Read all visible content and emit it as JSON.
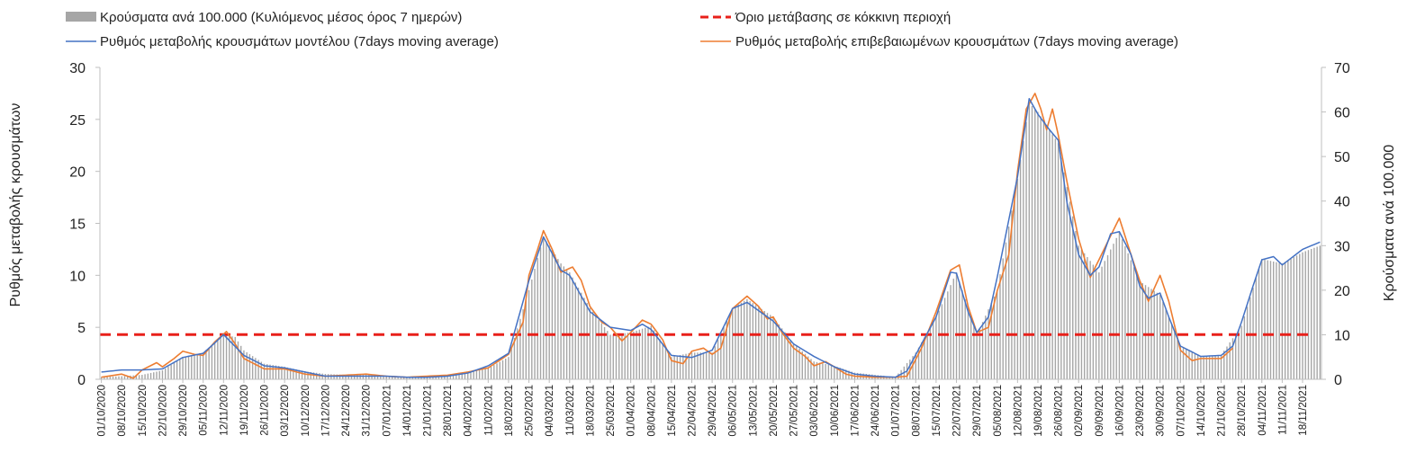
{
  "chart_data": {
    "type": "bar",
    "legend": {
      "bars": "Κρούσματα ανά 100.000 (Κυλιόμενος μέσος όρος 7 ημερών)",
      "threshold": "Όριο μετάβασης σε κόκκινη περιοχή",
      "model": "Ρυθμός μεταβολής κρουσμάτων μοντέλου (7days moving average)",
      "confirmed": "Ρυθμός μεταβολής επιβεβαιωμένων κρουσμάτων (7days moving average)"
    },
    "ylabel_left": "Ρυθμός μεταβολής κρουσμάτων",
    "ylabel_right": "Κρούσματα ανά 100.000",
    "ylim_left": [
      0,
      30
    ],
    "ylim_right": [
      0,
      70
    ],
    "yticks_left": [
      0,
      5,
      10,
      15,
      20,
      25,
      30
    ],
    "yticks_right": [
      0,
      10,
      20,
      30,
      40,
      50,
      60,
      70
    ],
    "x_start": "01/10/2020",
    "x_end": "24/11/2021",
    "x_tick_labels": [
      "01/10/2020",
      "08/10/2020",
      "15/10/2020",
      "22/10/2020",
      "29/10/2020",
      "05/11/2020",
      "12/11/2020",
      "19/11/2020",
      "26/11/2020",
      "03/12/2020",
      "10/12/2020",
      "17/12/2020",
      "24/12/2020",
      "31/12/2020",
      "07/01/2021",
      "14/01/2021",
      "21/01/2021",
      "28/01/2021",
      "04/02/2021",
      "11/02/2021",
      "18/02/2021",
      "25/02/2021",
      "04/03/2021",
      "11/03/2021",
      "18/03/2021",
      "25/03/2021",
      "01/04/2021",
      "08/04/2021",
      "15/04/2021",
      "22/04/2021",
      "29/04/2021",
      "06/05/2021",
      "13/05/2021",
      "20/05/2021",
      "27/05/2021",
      "03/06/2021",
      "10/06/2021",
      "17/06/2021",
      "24/06/2021",
      "01/07/2021",
      "08/07/2021",
      "15/07/2021",
      "22/07/2021",
      "29/07/2021",
      "05/08/2021",
      "12/08/2021",
      "19/08/2021",
      "26/08/2021",
      "02/09/2021",
      "09/09/2021",
      "16/09/2021",
      "23/09/2021",
      "30/09/2021",
      "07/10/2021",
      "14/10/2021",
      "21/10/2021",
      "28/10/2021",
      "04/11/2021",
      "11/11/2021",
      "18/11/2021"
    ],
    "threshold_value": 4.3,
    "model_rate_points": [
      [
        "01/10/2020",
        0.7
      ],
      [
        "08/10/2020",
        0.9
      ],
      [
        "15/10/2020",
        0.9
      ],
      [
        "22/10/2020",
        1.0
      ],
      [
        "29/10/2020",
        2.1
      ],
      [
        "05/11/2020",
        2.5
      ],
      [
        "09/11/2020",
        3.5
      ],
      [
        "12/11/2020",
        4.3
      ],
      [
        "19/11/2020",
        2.3
      ],
      [
        "26/11/2020",
        1.3
      ],
      [
        "03/12/2020",
        1.1
      ],
      [
        "10/12/2020",
        0.7
      ],
      [
        "17/12/2020",
        0.3
      ],
      [
        "24/12/2020",
        0.3
      ],
      [
        "31/12/2020",
        0.3
      ],
      [
        "07/01/2021",
        0.3
      ],
      [
        "14/01/2021",
        0.2
      ],
      [
        "21/01/2021",
        0.2
      ],
      [
        "28/01/2021",
        0.3
      ],
      [
        "04/02/2021",
        0.6
      ],
      [
        "11/02/2021",
        1.3
      ],
      [
        "18/02/2021",
        2.5
      ],
      [
        "25/02/2021",
        9.5
      ],
      [
        "02/03/2021",
        13.7
      ],
      [
        "08/03/2021",
        10.5
      ],
      [
        "11/03/2021",
        10.0
      ],
      [
        "18/03/2021",
        6.5
      ],
      [
        "25/03/2021",
        5.0
      ],
      [
        "01/04/2021",
        4.7
      ],
      [
        "05/04/2021",
        5.3
      ],
      [
        "08/04/2021",
        4.8
      ],
      [
        "15/04/2021",
        2.3
      ],
      [
        "22/04/2021",
        2.1
      ],
      [
        "29/04/2021",
        2.8
      ],
      [
        "06/05/2021",
        6.8
      ],
      [
        "11/05/2021",
        7.4
      ],
      [
        "13/05/2021",
        7.0
      ],
      [
        "20/05/2021",
        5.6
      ],
      [
        "27/05/2021",
        3.4
      ],
      [
        "03/06/2021",
        2.2
      ],
      [
        "10/06/2021",
        1.2
      ],
      [
        "17/06/2021",
        0.5
      ],
      [
        "24/06/2021",
        0.3
      ],
      [
        "01/07/2021",
        0.2
      ],
      [
        "05/07/2021",
        0.8
      ],
      [
        "15/07/2021",
        6.0
      ],
      [
        "20/07/2021",
        10.3
      ],
      [
        "22/07/2021",
        10.2
      ],
      [
        "26/07/2021",
        6.5
      ],
      [
        "29/07/2021",
        4.5
      ],
      [
        "02/08/2021",
        6.0
      ],
      [
        "05/08/2021",
        9.8
      ],
      [
        "12/08/2021",
        19.5
      ],
      [
        "16/08/2021",
        27.0
      ],
      [
        "19/08/2021",
        25.5
      ],
      [
        "23/08/2021",
        24.0
      ],
      [
        "26/08/2021",
        23.0
      ],
      [
        "29/08/2021",
        17.0
      ],
      [
        "02/09/2021",
        12.0
      ],
      [
        "06/09/2021",
        10.0
      ],
      [
        "09/09/2021",
        10.8
      ],
      [
        "13/09/2021",
        14.0
      ],
      [
        "16/09/2021",
        14.2
      ],
      [
        "20/09/2021",
        12.0
      ],
      [
        "23/09/2021",
        9.0
      ],
      [
        "26/09/2021",
        7.8
      ],
      [
        "30/09/2021",
        8.3
      ],
      [
        "03/10/2021",
        6.0
      ],
      [
        "07/10/2021",
        3.2
      ],
      [
        "14/10/2021",
        2.2
      ],
      [
        "21/10/2021",
        2.3
      ],
      [
        "25/10/2021",
        3.2
      ],
      [
        "28/10/2021",
        5.5
      ],
      [
        "01/11/2021",
        9.0
      ],
      [
        "04/11/2021",
        11.5
      ],
      [
        "08/11/2021",
        11.8
      ],
      [
        "11/11/2021",
        11.0
      ],
      [
        "18/11/2021",
        12.5
      ],
      [
        "24/11/2021",
        13.2
      ]
    ],
    "confirmed_rate_points": [
      [
        "01/10/2020",
        0.2
      ],
      [
        "08/10/2020",
        0.5
      ],
      [
        "12/10/2020",
        0.1
      ],
      [
        "15/10/2020",
        0.9
      ],
      [
        "20/10/2020",
        1.6
      ],
      [
        "22/10/2020",
        1.2
      ],
      [
        "26/10/2020",
        2.0
      ],
      [
        "29/10/2020",
        2.7
      ],
      [
        "02/11/2020",
        2.4
      ],
      [
        "05/11/2020",
        2.3
      ],
      [
        "09/11/2020",
        3.6
      ],
      [
        "13/11/2020",
        4.6
      ],
      [
        "16/11/2020",
        3.4
      ],
      [
        "19/11/2020",
        2.0
      ],
      [
        "26/11/2020",
        1.0
      ],
      [
        "03/12/2020",
        1.0
      ],
      [
        "10/12/2020",
        0.5
      ],
      [
        "17/12/2020",
        0.3
      ],
      [
        "24/12/2020",
        0.4
      ],
      [
        "31/12/2020",
        0.5
      ],
      [
        "07/01/2021",
        0.3
      ],
      [
        "14/01/2021",
        0.2
      ],
      [
        "21/01/2021",
        0.3
      ],
      [
        "28/01/2021",
        0.4
      ],
      [
        "04/02/2021",
        0.7
      ],
      [
        "11/02/2021",
        1.1
      ],
      [
        "18/02/2021",
        2.4
      ],
      [
        "23/02/2021",
        5.5
      ],
      [
        "25/02/2021",
        10.0
      ],
      [
        "28/02/2021",
        12.5
      ],
      [
        "02/03/2021",
        14.3
      ],
      [
        "05/03/2021",
        12.5
      ],
      [
        "08/03/2021",
        10.3
      ],
      [
        "12/03/2021",
        10.8
      ],
      [
        "15/03/2021",
        9.5
      ],
      [
        "18/03/2021",
        7.0
      ],
      [
        "22/03/2021",
        5.5
      ],
      [
        "25/03/2021",
        5.0
      ],
      [
        "29/03/2021",
        3.7
      ],
      [
        "01/04/2021",
        4.5
      ],
      [
        "05/04/2021",
        5.7
      ],
      [
        "08/04/2021",
        5.3
      ],
      [
        "12/04/2021",
        3.8
      ],
      [
        "15/04/2021",
        1.8
      ],
      [
        "19/04/2021",
        1.5
      ],
      [
        "22/04/2021",
        2.7
      ],
      [
        "26/04/2021",
        3.0
      ],
      [
        "29/04/2021",
        2.4
      ],
      [
        "02/05/2021",
        3.0
      ],
      [
        "06/05/2021",
        6.8
      ],
      [
        "11/05/2021",
        8.0
      ],
      [
        "15/05/2021",
        7.0
      ],
      [
        "18/05/2021",
        5.8
      ],
      [
        "20/05/2021",
        6.0
      ],
      [
        "23/05/2021",
        4.5
      ],
      [
        "27/05/2021",
        3.0
      ],
      [
        "31/05/2021",
        2.2
      ],
      [
        "03/06/2021",
        1.3
      ],
      [
        "07/06/2021",
        1.7
      ],
      [
        "10/06/2021",
        1.2
      ],
      [
        "14/06/2021",
        0.5
      ],
      [
        "17/06/2021",
        0.3
      ],
      [
        "24/06/2021",
        0.2
      ],
      [
        "01/07/2021",
        0.2
      ],
      [
        "05/07/2021",
        0.3
      ],
      [
        "10/07/2021",
        3.0
      ],
      [
        "15/07/2021",
        6.5
      ],
      [
        "20/07/2021",
        10.5
      ],
      [
        "23/07/2021",
        11.0
      ],
      [
        "26/07/2021",
        7.0
      ],
      [
        "29/07/2021",
        4.5
      ],
      [
        "02/08/2021",
        5.0
      ],
      [
        "05/08/2021",
        8.5
      ],
      [
        "09/08/2021",
        12.0
      ],
      [
        "12/08/2021",
        20.0
      ],
      [
        "15/08/2021",
        26.0
      ],
      [
        "18/08/2021",
        27.5
      ],
      [
        "20/08/2021",
        26.0
      ],
      [
        "22/08/2021",
        24.0
      ],
      [
        "24/08/2021",
        26.0
      ],
      [
        "26/08/2021",
        23.5
      ],
      [
        "29/08/2021",
        19.0
      ],
      [
        "02/09/2021",
        13.5
      ],
      [
        "06/09/2021",
        9.8
      ],
      [
        "09/09/2021",
        11.5
      ],
      [
        "13/09/2021",
        13.8
      ],
      [
        "16/09/2021",
        15.5
      ],
      [
        "20/09/2021",
        12.0
      ],
      [
        "23/09/2021",
        9.5
      ],
      [
        "26/09/2021",
        7.5
      ],
      [
        "30/09/2021",
        10.0
      ],
      [
        "03/10/2021",
        7.5
      ],
      [
        "07/10/2021",
        2.8
      ],
      [
        "11/10/2021",
        1.8
      ],
      [
        "14/10/2021",
        2.0
      ],
      [
        "18/10/2021",
        2.0
      ],
      [
        "21/10/2021",
        2.0
      ],
      [
        "25/10/2021",
        3.0
      ]
    ],
    "cases_per_100k_points": [
      [
        "01/10/2020",
        0.5
      ],
      [
        "08/10/2020",
        0.7
      ],
      [
        "15/10/2020",
        1.0
      ],
      [
        "22/10/2020",
        2.0
      ],
      [
        "29/10/2020",
        5.0
      ],
      [
        "05/11/2020",
        6.0
      ],
      [
        "12/11/2020",
        10.0
      ],
      [
        "16/11/2020",
        9.5
      ],
      [
        "19/11/2020",
        6.5
      ],
      [
        "26/11/2020",
        3.5
      ],
      [
        "03/12/2020",
        2.8
      ],
      [
        "10/12/2020",
        1.8
      ],
      [
        "17/12/2020",
        1.2
      ],
      [
        "24/12/2020",
        1.0
      ],
      [
        "31/12/2020",
        1.0
      ],
      [
        "07/01/2021",
        0.8
      ],
      [
        "14/01/2021",
        0.6
      ],
      [
        "21/01/2021",
        0.6
      ],
      [
        "28/01/2021",
        0.8
      ],
      [
        "04/02/2021",
        1.5
      ],
      [
        "11/02/2021",
        2.5
      ],
      [
        "18/02/2021",
        5.0
      ],
      [
        "25/02/2021",
        20.0
      ],
      [
        "02/03/2021",
        32.0
      ],
      [
        "08/03/2021",
        26.0
      ],
      [
        "11/03/2021",
        24.0
      ],
      [
        "18/03/2021",
        16.0
      ],
      [
        "25/03/2021",
        10.0
      ],
      [
        "01/04/2021",
        10.5
      ],
      [
        "08/04/2021",
        12.0
      ],
      [
        "15/04/2021",
        5.0
      ],
      [
        "22/04/2021",
        6.0
      ],
      [
        "29/04/2021",
        6.0
      ],
      [
        "06/05/2021",
        16.0
      ],
      [
        "11/05/2021",
        18.0
      ],
      [
        "20/05/2021",
        14.0
      ],
      [
        "27/05/2021",
        8.0
      ],
      [
        "03/06/2021",
        4.0
      ],
      [
        "10/06/2021",
        3.0
      ],
      [
        "17/06/2021",
        1.5
      ],
      [
        "24/06/2021",
        1.0
      ],
      [
        "01/07/2021",
        0.5
      ],
      [
        "08/07/2021",
        6.0
      ],
      [
        "15/07/2021",
        14.0
      ],
      [
        "22/07/2021",
        24.0
      ],
      [
        "29/07/2021",
        10.0
      ],
      [
        "05/08/2021",
        20.0
      ],
      [
        "12/08/2021",
        45.0
      ],
      [
        "16/08/2021",
        62.0
      ],
      [
        "19/08/2021",
        60.0
      ],
      [
        "26/08/2021",
        53.0
      ],
      [
        "02/09/2021",
        30.0
      ],
      [
        "09/09/2021",
        24.0
      ],
      [
        "16/09/2021",
        33.0
      ],
      [
        "23/09/2021",
        22.0
      ],
      [
        "30/09/2021",
        19.0
      ],
      [
        "07/10/2021",
        7.5
      ],
      [
        "14/10/2021",
        5.0
      ],
      [
        "21/10/2021",
        5.5
      ],
      [
        "28/10/2021",
        12.0
      ],
      [
        "04/11/2021",
        27.0
      ],
      [
        "11/11/2021",
        26.0
      ],
      [
        "18/11/2021",
        28.5
      ],
      [
        "24/11/2021",
        30.0
      ]
    ],
    "colors": {
      "bars": "#a6a6a6",
      "threshold": "#e8201a",
      "model": "#4472c4",
      "confirmed": "#ed7d31",
      "axis": "#595959"
    }
  }
}
